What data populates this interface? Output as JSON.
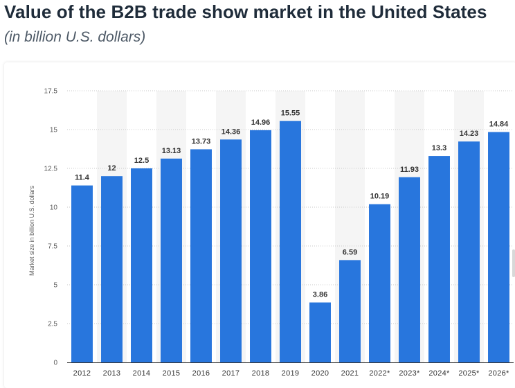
{
  "header": {
    "title": "Value of the B2B trade show market in the United States",
    "subtitle": "(in billion U.S. dollars)"
  },
  "chart_data": {
    "type": "bar",
    "title": "Value of the B2B trade show market in the United States",
    "subtitle": "(in billion U.S. dollars)",
    "xlabel": "",
    "ylabel": "Market size in billion U.S. dollars",
    "categories": [
      "2012",
      "2013",
      "2014",
      "2015",
      "2016",
      "2017",
      "2018",
      "2019",
      "2020",
      "2021",
      "2022*",
      "2023*",
      "2024*",
      "2025*",
      "2026*"
    ],
    "values": [
      11.4,
      12,
      12.5,
      13.13,
      13.73,
      14.36,
      14.96,
      15.55,
      3.86,
      6.59,
      10.19,
      11.93,
      13.3,
      14.23,
      14.84
    ],
    "value_labels": [
      "11.4",
      "12",
      "12.5",
      "13.13",
      "13.73",
      "14.36",
      "14.96",
      "15.55",
      "3.86",
      "6.59",
      "10.19",
      "11.93",
      "13.3",
      "14.23",
      "14.84"
    ],
    "ylim": [
      0,
      17.5
    ],
    "yticks": [
      "0",
      "2.5",
      "5",
      "7.5",
      "10",
      "12.5",
      "15",
      "17.5"
    ],
    "ytick_values": [
      0,
      2.5,
      5,
      7.5,
      10,
      12.5,
      15,
      17.5
    ],
    "grid": true,
    "colors": {
      "bar": "#2876dd",
      "band": "#f5f5f5",
      "grid": "#c9c9c9",
      "axis": "#333333"
    }
  }
}
